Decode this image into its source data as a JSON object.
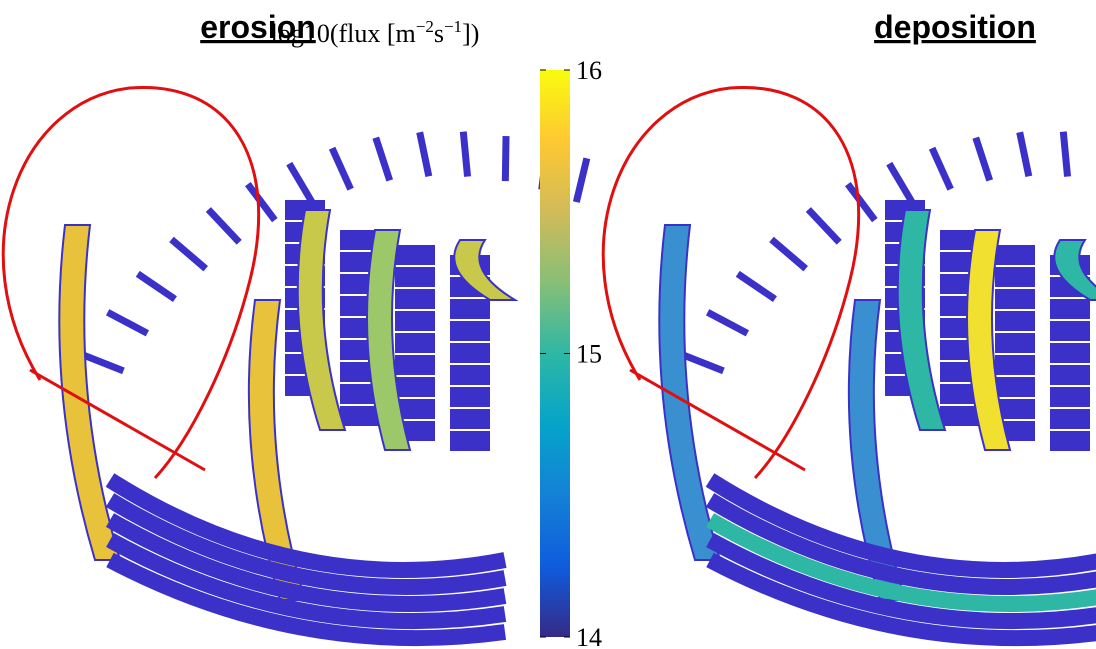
{
  "panels": [
    {
      "title": "erosion"
    },
    {
      "title": "deposition"
    }
  ],
  "colorbar": {
    "label": {
      "pre": "log10(flux [m",
      "sup1": "−2",
      "mid": "s",
      "sup2": "−1",
      "post": "])"
    },
    "lim": [
      14,
      16
    ],
    "ticks": [
      14,
      15,
      16
    ],
    "colors": [
      "#352a87",
      "#0f5cdd",
      "#1481d6",
      "#06a4ca",
      "#2eb7a4",
      "#87bf77",
      "#d1bb59",
      "#fec832",
      "#f9fb0e"
    ]
  }
}
